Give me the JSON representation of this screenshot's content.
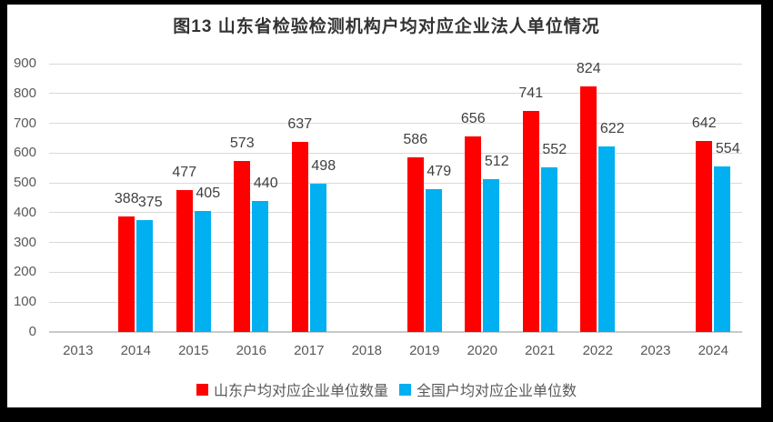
{
  "title": "图13 山东省检验检测机构户均对应企业法人单位情况",
  "colors": {
    "shandong_bar": "#FF0000",
    "national_bar": "#00B0F0",
    "gridline": "#D9D9D9",
    "axis_text": "#595959",
    "data_label_text": "#404040",
    "frame": "#000000"
  },
  "chart_data": {
    "type": "bar",
    "title": "图13 山东省检验检测机构户均对应企业法人单位情况",
    "categories": [
      "2013",
      "2014",
      "2015",
      "2016",
      "2017",
      "2018",
      "2019",
      "2020",
      "2021",
      "2022",
      "2023",
      "2024"
    ],
    "series": [
      {
        "name": "山东户均对应企业单位数量",
        "color": "#FF0000",
        "values": [
          null,
          388,
          477,
          573,
          637,
          null,
          586,
          656,
          741,
          824,
          null,
          642
        ]
      },
      {
        "name": "全国户均对应企业单位数",
        "color": "#00B0F0",
        "values": [
          null,
          375,
          405,
          440,
          498,
          null,
          479,
          512,
          552,
          622,
          null,
          554
        ]
      }
    ],
    "xlabel": "",
    "ylabel": "",
    "ylim": [
      0,
      900
    ],
    "yticks": [
      0,
      100,
      200,
      300,
      400,
      500,
      600,
      700,
      800,
      900
    ],
    "grid": true,
    "data_labels": true,
    "legend_position": "bottom"
  }
}
